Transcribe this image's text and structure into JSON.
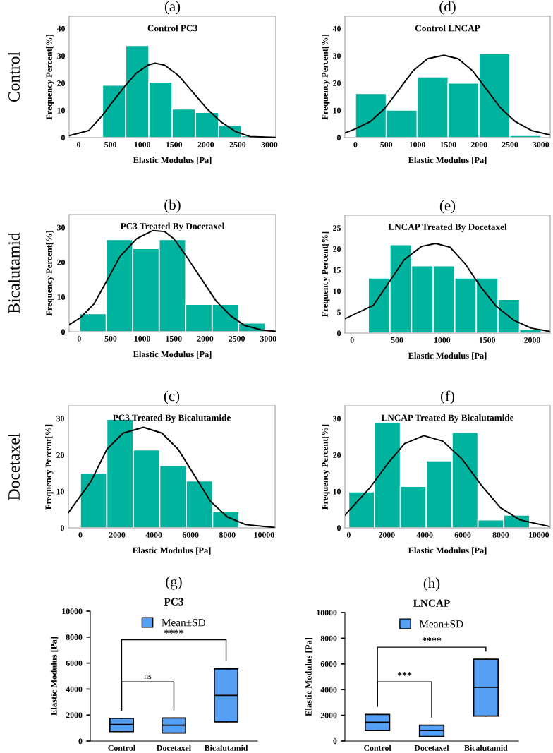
{
  "chart_data": [
    {
      "type": "histogram",
      "title": "(a)",
      "subtitle": "Control PC3",
      "xlabel": "Elastic Modulus [Pa]",
      "ylabel": "Frequency Percent[%]",
      "annotations": [
        "Control"
      ],
      "color": "#00b39f",
      "bins": [
        375,
        740,
        1105,
        1470,
        1835,
        2200,
        2565,
        2930
      ],
      "values": [
        19.2,
        33.8,
        20.3,
        10.5,
        9.3,
        4.5,
        0.7
      ],
      "series": [
        {
          "type": "line",
          "color": "#000000",
          "x": [
            -150,
            160,
            365,
            532,
            737,
            904,
            1090,
            1202,
            1351,
            1574,
            1798,
            2021,
            2244,
            2467,
            2691,
            3100
          ],
          "values": [
            0.7,
            2.6,
            7.9,
            13.1,
            19.2,
            23.6,
            26.6,
            27.3,
            26.6,
            22.7,
            16.6,
            10.5,
            5.7,
            2.2,
            0.4,
            0.1
          ]
        }
      ],
      "xlim": [
        -150,
        3100
      ],
      "ylim": [
        0,
        44.5
      ],
      "xticks": [
        0,
        500,
        1000,
        1500,
        2000,
        2500,
        3000
      ],
      "yticks": [
        0,
        10,
        20,
        30,
        40
      ]
    },
    {
      "type": "histogram",
      "title": "(d)",
      "subtitle": "Control LNCAP",
      "xlabel": "Elastic Modulus [Pa]",
      "ylabel": "Frequency Percent[%]",
      "color": "#00b39f",
      "bins": [
        0,
        500,
        1000,
        1500,
        2000,
        2500,
        3000
      ],
      "values": [
        16.2,
        10.1,
        22.3,
        20.0,
        30.8,
        0.8
      ],
      "series": [
        {
          "type": "line",
          "color": "#000000",
          "x": [
            -170,
            0,
            248,
            478,
            707,
            936,
            1165,
            1433,
            1662,
            1892,
            2121,
            2350,
            2579,
            2847,
            3150
          ],
          "values": [
            1.7,
            3.2,
            6.0,
            10.8,
            17.7,
            24.6,
            28.9,
            30.2,
            28.9,
            24.6,
            17.7,
            10.8,
            6.0,
            2.6,
            1.0
          ]
        }
      ],
      "xlim": [
        -170,
        3150
      ],
      "ylim": [
        0,
        44.5
      ],
      "xticks": [
        0,
        500,
        1000,
        1500,
        2000,
        2500,
        3000
      ],
      "yticks": [
        0,
        10,
        20,
        30,
        40
      ]
    },
    {
      "type": "histogram",
      "title": "(b)",
      "subtitle": "PC3 Treated By Docetaxel",
      "xlabel": "Elastic Modulus [Pa]",
      "ylabel": "Frequency Percent[%]",
      "annotations": [
        "Bicalutamid"
      ],
      "color": "#00b39f",
      "bins": [
        10,
        430,
        850,
        1270,
        1690,
        2110,
        2530,
        2950
      ],
      "values": [
        5.2,
        26.5,
        23.9,
        26.5,
        7.9,
        7.9,
        2.5
      ],
      "series": [
        {
          "type": "line",
          "color": "#000000",
          "x": [
            -160,
            11,
            235,
            422,
            646,
            908,
            1169,
            1356,
            1505,
            1730,
            1954,
            2178,
            2402,
            2626,
            2888,
            3120
          ],
          "values": [
            2.0,
            3.9,
            8.0,
            14.1,
            21.6,
            26.7,
            29.1,
            28.8,
            26.7,
            20.9,
            14.8,
            8.7,
            4.6,
            1.8,
            0.5,
            0.1
          ]
        }
      ],
      "xlim": [
        -160,
        3120
      ],
      "ylim": [
        0,
        33.7
      ],
      "xticks": [
        0,
        500,
        1000,
        1500,
        2000,
        2500,
        3000
      ],
      "yticks": [
        0,
        10,
        20,
        30
      ]
    },
    {
      "type": "histogram",
      "title": "(e)",
      "subtitle": "LNCAP Treated By Docetaxel",
      "xlabel": "Elastic Modulus [Pa]",
      "ylabel": "Frequency Percent[%]",
      "color": "#00b39f",
      "bins": [
        180,
        420,
        660,
        900,
        1140,
        1380,
        1620,
        1860,
        2100
      ],
      "values": [
        13.1,
        21.0,
        16.0,
        16.0,
        13.1,
        13.1,
        8.0,
        0.8
      ],
      "series": [
        {
          "type": "line",
          "color": "#000000",
          "x": [
            -80,
            236,
            407,
            577,
            772,
            929,
            1088,
            1258,
            1428,
            1599,
            1793,
            1988,
            2190
          ],
          "values": [
            3.4,
            6.6,
            12.0,
            17.4,
            20.6,
            21.3,
            20.4,
            16.4,
            11.0,
            6.4,
            3.1,
            1.2,
            0.4
          ]
        }
      ],
      "xlim": [
        -80,
        2200
      ],
      "ylim": [
        0,
        28
      ],
      "xticks": [
        0,
        500,
        1000,
        1500,
        2000
      ],
      "yticks": [
        0,
        5,
        10,
        15,
        20,
        25
      ]
    },
    {
      "type": "histogram",
      "title": "(c)",
      "subtitle": "PC3 Treated By Bicalutamide",
      "xlabel": "Elastic Modulus [Pa]",
      "ylabel": "Frequency Percent[%]",
      "annotations": [
        "Docetaxel"
      ],
      "color": "#00b39f",
      "bins": [
        0,
        1440,
        2880,
        4320,
        5760,
        7200,
        8640
      ],
      "values": [
        15.0,
        29.8,
        21.4,
        17.1,
        12.9,
        4.4
      ],
      "series": [
        {
          "type": "line",
          "color": "#000000",
          "x": [
            -650,
            571,
            1448,
            2330,
            3437,
            4440,
            5318,
            6199,
            7077,
            8000,
            9000,
            10550
          ],
          "values": [
            4.2,
            12.7,
            21.6,
            26.0,
            27.6,
            26.0,
            21.6,
            14.5,
            7.3,
            3.0,
            0.9,
            0.1
          ]
        }
      ],
      "xlim": [
        -650,
        10600
      ],
      "ylim": [
        0,
        33.5
      ],
      "xticks": [
        0,
        2000,
        4000,
        6000,
        8000,
        10000
      ],
      "yticks": [
        0,
        10,
        20,
        30
      ]
    },
    {
      "type": "histogram",
      "title": "(f)",
      "subtitle": "LNCAP Treated By Bicalutamide",
      "xlabel": "Elastic Modulus [Pa]",
      "ylabel": "Frequency Percent[%]",
      "color": "#00b39f",
      "bins": [
        0,
        1360,
        2720,
        4080,
        5440,
        6800,
        8160,
        9520
      ],
      "values": [
        9.9,
        28.9,
        11.4,
        18.4,
        26.2,
        2.2,
        3.5
      ],
      "series": [
        {
          "type": "line",
          "color": "#000000",
          "x": [
            -200,
            1099,
            2106,
            2942,
            3949,
            4953,
            5960,
            6964,
            7971,
            9000,
            10550
          ],
          "values": [
            3.5,
            10.9,
            18.0,
            23.1,
            25.3,
            23.8,
            18.9,
            11.8,
            5.6,
            2.2,
            0.4
          ]
        }
      ],
      "xlim": [
        -200,
        10600
      ],
      "ylim": [
        0,
        33.5
      ],
      "xticks": [
        0,
        2000,
        4000,
        6000,
        8000,
        10000
      ],
      "yticks": [
        0,
        10,
        20,
        30
      ]
    },
    {
      "type": "box",
      "title": "(g)",
      "subtitle": "PC3",
      "ylabel": "Elastic Modulus [Pa]",
      "categories": [
        "Control",
        "Docetaxel",
        "Bicalutamid"
      ],
      "legend": "top",
      "annotations": [
        "ns",
        "****"
      ],
      "series": [
        {
          "name": "Mean±SD",
          "color": "#55a0f5",
          "boxes": [
            {
              "low": 720,
              "q1": 720,
              "median": 1270,
              "q3": 1740,
              "high": 1740
            },
            {
              "low": 620,
              "q1": 620,
              "median": 1220,
              "q3": 1770,
              "high": 1770
            },
            {
              "low": 1470,
              "q1": 1470,
              "median": 3510,
              "q3": 5550,
              "high": 5550
            }
          ]
        }
      ],
      "ylim": [
        0,
        10000
      ],
      "yticks": [
        0,
        2000,
        4000,
        6000,
        8000,
        10000
      ]
    },
    {
      "type": "box",
      "title": "(h)",
      "subtitle": "LNCAP",
      "ylabel": "Elastic Modulus [Pa]",
      "categories": [
        "Control",
        "Docetaxel",
        "Bicalutamid"
      ],
      "legend": "top",
      "annotations": [
        "***",
        "****"
      ],
      "series": [
        {
          "name": "Mean±SD",
          "color": "#55a0f5",
          "boxes": [
            {
              "low": 810,
              "q1": 810,
              "median": 1460,
              "q3": 2070,
              "high": 2070
            },
            {
              "low": 350,
              "q1": 350,
              "median": 810,
              "q3": 1230,
              "high": 1230
            },
            {
              "low": 1940,
              "q1": 1940,
              "median": 4180,
              "q3": 6370,
              "high": 6370
            }
          ]
        }
      ],
      "ylim": [
        0,
        10000
      ],
      "yticks": [
        0,
        2000,
        4000,
        6000,
        8000,
        10000
      ]
    }
  ]
}
